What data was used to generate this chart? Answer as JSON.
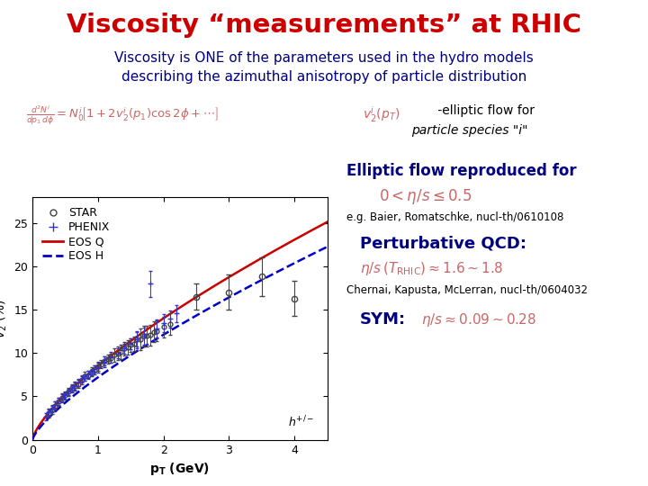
{
  "title": "Viscosity “measurements” at RHIC",
  "title_color": "#cc0000",
  "subtitle1": "Viscosity is ONE of the parameters used in the hydro models",
  "subtitle2": "describing the azimuthal anisotropy of particle distribution",
  "subtitle_color": "#000080",
  "bg_color": "#ffffff",
  "plot_bg": "#ffffff",
  "eos_q_color": "#cc0000",
  "eos_h_color": "#0000cc",
  "star_color": "#444444",
  "phenix_color": "#3333cc",
  "annotation_color": "#000080",
  "formula_color": "#cc6666",
  "red_formula_color": "#cc6666",
  "ylim": [
    0,
    28
  ],
  "xlim": [
    0,
    4.5
  ],
  "yticks": [
    0,
    5,
    10,
    15,
    20,
    25
  ],
  "xticks": [
    0,
    1,
    2,
    3,
    4
  ]
}
